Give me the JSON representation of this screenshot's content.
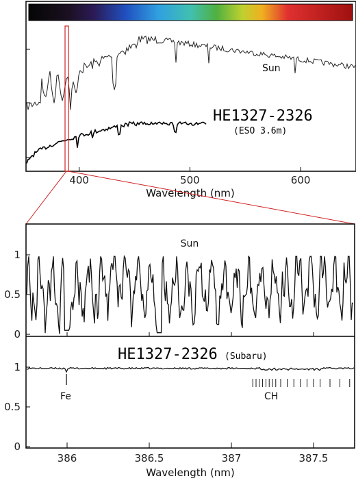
{
  "chart_data": [
    {
      "type": "line",
      "xlabel": "Wavelength (nm)",
      "xlim": [
        352,
        650
      ],
      "xticks": [
        400,
        500,
        600
      ],
      "colorbar": true,
      "series": [
        {
          "name": "Sun",
          "label": "Sun"
        },
        {
          "name": "HE1327-2326",
          "label": "HE1327-2326",
          "sublabel": "(ESO 3.6m)"
        }
      ],
      "zoom_window_nm": [
        386.2,
        388.0
      ]
    },
    {
      "type": "line",
      "xlabel": "Wavelength (nm)",
      "xlim": [
        385.75,
        387.75
      ],
      "xticks": [
        "386",
        "386.5",
        "387",
        "387.5"
      ],
      "panels": [
        {
          "series_name": "Sun",
          "label": "Sun",
          "ylim": [
            0,
            1.2
          ],
          "yticks": [
            "0",
            "0.5",
            "1"
          ]
        },
        {
          "series_name": "HE1327-2326",
          "label": "HE1327-2326",
          "sublabel": "(Subaru)",
          "ylim": [
            0,
            1.2
          ],
          "yticks": [
            "0",
            "0.5",
            "1"
          ]
        }
      ],
      "annotations": [
        {
          "text": "Fe",
          "x": 386.0
        },
        {
          "text": "CH",
          "x_range": [
            387.13,
            387.75
          ]
        }
      ],
      "ch_lines": [
        387.13,
        387.15,
        387.17,
        387.19,
        387.21,
        387.23,
        387.25,
        387.27,
        387.3,
        387.34,
        387.38,
        387.42,
        387.46,
        387.5,
        387.54,
        387.6,
        387.66,
        387.72
      ]
    }
  ]
}
